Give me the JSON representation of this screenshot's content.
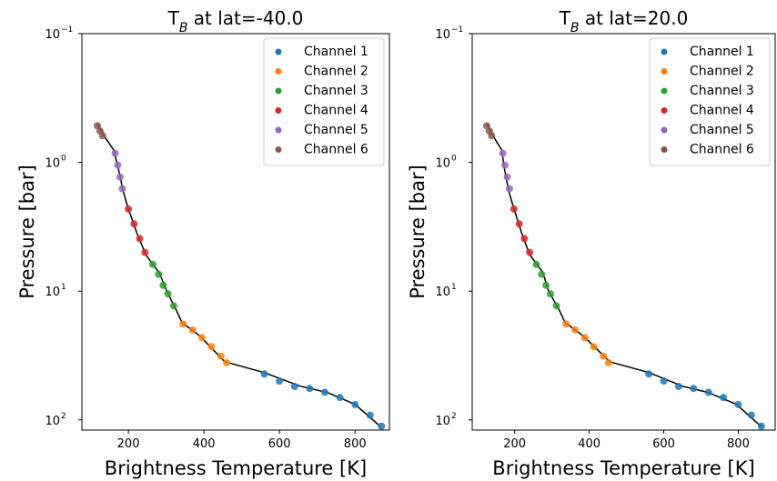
{
  "chart_data": [
    {
      "type": "scatter",
      "title": {
        "text": "T",
        "subscript": "B",
        "rest": " at lat=-40.0"
      },
      "x_label": "Brightness Temperature [K]",
      "y_label": "Pressure [bar]",
      "xlim": [
        77,
        891
      ],
      "xticks": [
        200,
        400,
        600,
        800
      ],
      "ylim": [
        0.1,
        120
      ],
      "yscale": "log",
      "invert_y": true,
      "yticks": [
        {
          "value": 0.1,
          "label": "10",
          "exponent": "−1"
        },
        {
          "value": 1,
          "label": "10",
          "exponent": "0"
        },
        {
          "value": 10,
          "label": "10",
          "exponent": "1"
        },
        {
          "value": 100,
          "label": "10",
          "exponent": "2"
        }
      ],
      "legend": "upper right",
      "line": {
        "color": "#000000",
        "x": [
          118,
          137,
          161,
          173,
          186,
          198,
          222,
          246,
          263,
          282,
          301,
          325,
          342,
          390,
          455,
          559,
          655,
          728,
          800,
          868
        ],
        "y": [
          0.5,
          0.63,
          0.8,
          1.1,
          1.66,
          2.2,
          3.5,
          5.2,
          6.1,
          7.2,
          9.9,
          13.7,
          17.5,
          22.4,
          35.3,
          42.9,
          54.7,
          61.4,
          75.7,
          113
        ]
      },
      "series": [
        {
          "name": "Channel 1",
          "color": "#1f77b4",
          "x": [
            560,
            600,
            640,
            680,
            720,
            760,
            800,
            840,
            870
          ],
          "values": [
            44,
            50,
            55,
            57,
            61,
            67,
            76,
            92,
            112
          ]
        },
        {
          "name": "Channel 2",
          "color": "#ff7f0e",
          "x": [
            345,
            370,
            395,
            420,
            445,
            460
          ],
          "values": [
            18,
            20,
            23,
            27,
            32,
            36
          ]
        },
        {
          "name": "Channel 3",
          "color": "#2ca02c",
          "x": [
            265,
            280,
            292,
            305,
            320
          ],
          "values": [
            6.2,
            7.4,
            9,
            10.5,
            13
          ]
        },
        {
          "name": "Channel 4",
          "color": "#d62728",
          "x": [
            200,
            215,
            230,
            244
          ],
          "values": [
            2.3,
            3.0,
            3.9,
            5.0
          ]
        },
        {
          "name": "Channel 5",
          "color": "#9467bd",
          "x": [
            165,
            172,
            178,
            184
          ],
          "values": [
            0.85,
            1.05,
            1.3,
            1.6
          ]
        },
        {
          "name": "Channel 6",
          "color": "#8c564b",
          "x": [
            118,
            125,
            132
          ],
          "values": [
            0.52,
            0.57,
            0.62
          ]
        }
      ]
    },
    {
      "type": "scatter",
      "title": {
        "text": "T",
        "subscript": "B",
        "rest": " at lat=20.0"
      },
      "x_label": "Brightness Temperature [K]",
      "y_label": "Pressure [bar]",
      "xlim": [
        86,
        899
      ],
      "xticks": [
        200,
        400,
        600,
        800
      ],
      "ylim": [
        0.1,
        120
      ],
      "yscale": "log",
      "invert_y": true,
      "yticks": [
        {
          "value": 0.1,
          "label": "10",
          "exponent": "−1"
        },
        {
          "value": 1,
          "label": "10",
          "exponent": "0"
        },
        {
          "value": 10,
          "label": "10",
          "exponent": "1"
        },
        {
          "value": 100,
          "label": "10",
          "exponent": "2"
        }
      ],
      "legend": "upper right",
      "line": {
        "color": "#000000",
        "x": [
          125,
          143,
          165,
          172,
          184,
          196,
          218,
          240,
          258,
          276,
          290,
          318,
          335,
          385,
          455,
          560,
          650,
          720,
          795,
          862
        ],
        "y": [
          0.5,
          0.63,
          0.8,
          1.1,
          1.66,
          2.2,
          3.5,
          5.2,
          6.1,
          7.2,
          9.9,
          13.7,
          17.5,
          22.4,
          35.3,
          42.9,
          54.7,
          61.4,
          75.7,
          113
        ]
      },
      "series": [
        {
          "name": "Channel 1",
          "color": "#1f77b4",
          "x": [
            560,
            600,
            640,
            680,
            720,
            760,
            800,
            835,
            862
          ],
          "values": [
            44,
            50,
            55,
            57,
            61,
            67,
            76,
            92,
            112
          ]
        },
        {
          "name": "Channel 2",
          "color": "#ff7f0e",
          "x": [
            338,
            362,
            388,
            412,
            438,
            452
          ],
          "values": [
            18,
            20,
            23,
            27,
            32,
            36
          ]
        },
        {
          "name": "Channel 3",
          "color": "#2ca02c",
          "x": [
            258,
            272,
            284,
            296,
            312
          ],
          "values": [
            6.2,
            7.4,
            9,
            10.5,
            13
          ]
        },
        {
          "name": "Channel 4",
          "color": "#d62728",
          "x": [
            198,
            212,
            226,
            240
          ],
          "values": [
            2.3,
            3.0,
            3.9,
            5.0
          ]
        },
        {
          "name": "Channel 5",
          "color": "#9467bd",
          "x": [
            168,
            174,
            180,
            186
          ],
          "values": [
            0.85,
            1.05,
            1.3,
            1.6
          ]
        },
        {
          "name": "Channel 6",
          "color": "#8c564b",
          "x": [
            125,
            132,
            138
          ],
          "values": [
            0.52,
            0.57,
            0.62
          ]
        }
      ]
    }
  ]
}
